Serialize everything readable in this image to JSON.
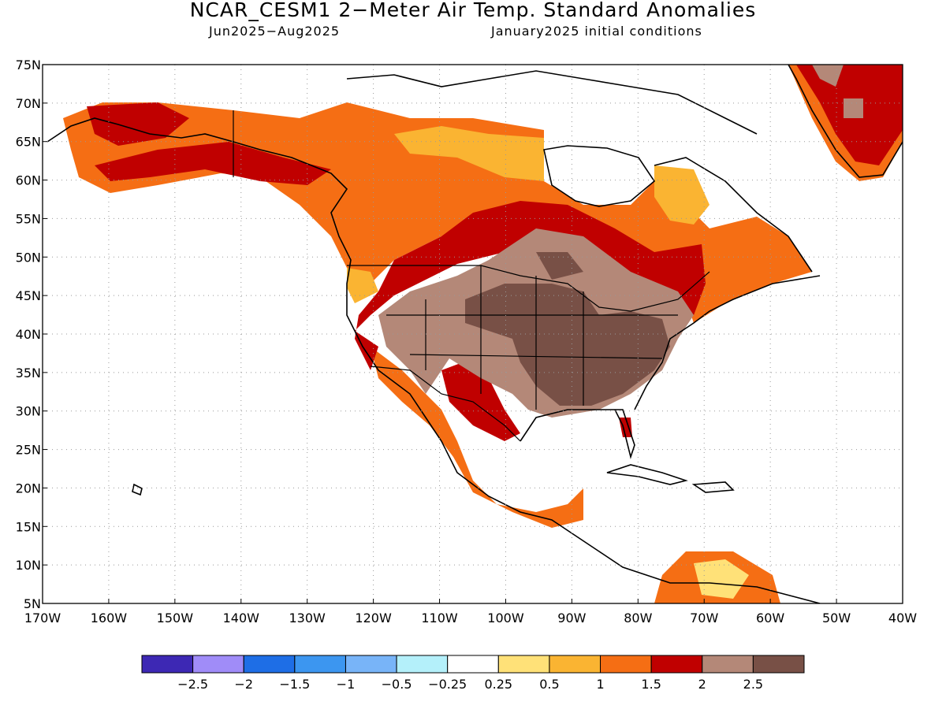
{
  "title": "NCAR_CESM1 2−Meter Air Temp. Standard Anomalies",
  "subtitle_left": "Jun2025−Aug2025",
  "subtitle_right": "January2025 initial conditions",
  "map": {
    "lon_ticks": [
      "170W",
      "160W",
      "150W",
      "140W",
      "130W",
      "120W",
      "110W",
      "100W",
      "90W",
      "80W",
      "70W",
      "60W",
      "50W",
      "40W"
    ],
    "lat_ticks": [
      "75N",
      "70N",
      "65N",
      "60N",
      "55N",
      "50N",
      "45N",
      "40N",
      "35N",
      "30N",
      "25N",
      "20N",
      "15N",
      "10N",
      "5N"
    ],
    "lon_range": [
      -170,
      -40
    ],
    "lat_range": [
      5,
      75
    ],
    "grid": "dotted"
  },
  "colorbar": {
    "colors": [
      "#3d28b4",
      "#a08cf8",
      "#1e6ee6",
      "#3c96f0",
      "#78b4f8",
      "#b4f0fa",
      "#ffffff",
      "#ffe178",
      "#fab432",
      "#f56e14",
      "#c00000",
      "#b48878",
      "#785046"
    ],
    "labels": [
      "−2.5",
      "−2",
      "−1.5",
      "−1",
      "−0.5",
      "−0.25",
      "0.25",
      "0.5",
      "1",
      "1.5",
      "2",
      "2.5"
    ]
  },
  "colors": {
    "light_yellow": "#ffe178",
    "yellow_orange": "#fab432",
    "orange": "#f56e14",
    "red": "#c00000",
    "light_brown": "#b48878",
    "dark_brown": "#785046"
  }
}
